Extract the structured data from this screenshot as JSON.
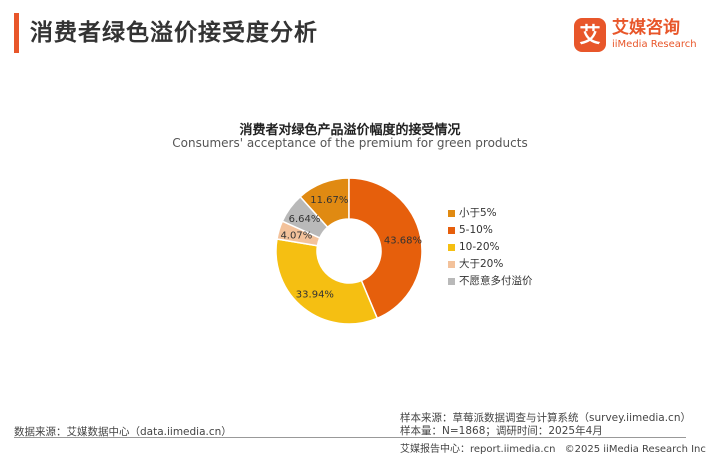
{
  "header": {
    "title": "消费者绿色溢价接受度分析",
    "logo_mark": "艾",
    "logo_cn": "艾媒咨询",
    "logo_en": "iiMedia Research"
  },
  "colors": {
    "accent": "#e8562a"
  },
  "chart_data": {
    "type": "pie",
    "donut": true,
    "title": "消费者对绿色产品溢价幅度的接受情况",
    "subtitle": "Consumers' acceptance of the premium for green products",
    "legend_position": "right",
    "slices": [
      {
        "label": "小于5%",
        "value": 11.67,
        "display": "11.67%",
        "color": "#e08a12"
      },
      {
        "label": "5-10%",
        "value": 43.68,
        "display": "43.68%",
        "color": "#e65f0c"
      },
      {
        "label": "10-20%",
        "value": 33.94,
        "display": "33.94%",
        "color": "#f5bf12"
      },
      {
        "label": "大于20%",
        "value": 4.07,
        "display": "4.07%",
        "color": "#f3c29b"
      },
      {
        "label": "不愿意多付溢价",
        "value": 6.64,
        "display": "6.64%",
        "color": "#b9b9b9"
      }
    ]
  },
  "footer": {
    "source": "数据来源：艾媒数据中心（data.iimedia.cn）",
    "sample_source": "样本来源：草莓派数据调查与计算系统（survey.iimedia.cn）",
    "sample_size": "样本量：N=1868；调研时间：2025年4月",
    "report_center": "艾媒报告中心：report.iimedia.cn",
    "copyright": "©2025  iiMedia Research  Inc"
  }
}
